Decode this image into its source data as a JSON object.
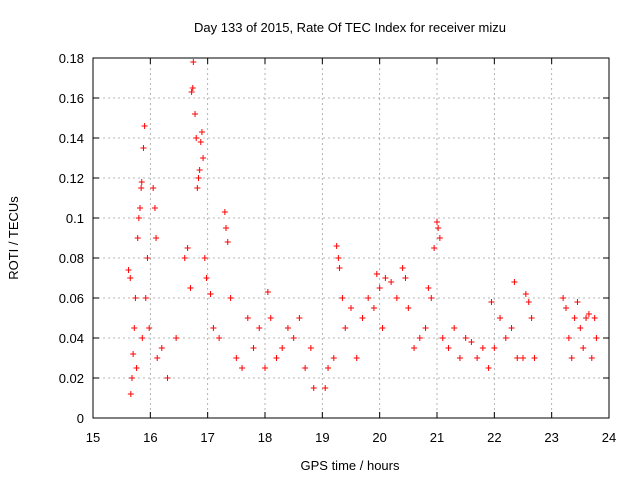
{
  "chart_data": {
    "type": "scatter",
    "title": "Day 133 of 2015, Rate Of TEC Index for receiver mizu",
    "xlabel": "GPS time / hours",
    "ylabel": "ROTI / TECUs",
    "xlim": [
      15,
      24
    ],
    "ylim": [
      0,
      0.18
    ],
    "xticks": [
      "15",
      "16",
      "17",
      "18",
      "19",
      "20",
      "21",
      "22",
      "23",
      "24"
    ],
    "yticks": [
      "0",
      "0.02",
      "0.04",
      "0.06",
      "0.08",
      "0.1",
      "0.12",
      "0.14",
      "0.16",
      "0.18"
    ],
    "grid": true,
    "marker": "+",
    "marker_color": "#ff0000",
    "series": [
      {
        "values": [
          [
            15.62,
            0.074
          ],
          [
            15.65,
            0.07
          ],
          [
            15.66,
            0.012
          ],
          [
            15.68,
            0.02
          ],
          [
            15.7,
            0.032
          ],
          [
            15.72,
            0.045
          ],
          [
            15.74,
            0.06
          ],
          [
            15.76,
            0.025
          ],
          [
            15.78,
            0.09
          ],
          [
            15.8,
            0.1
          ],
          [
            15.82,
            0.105
          ],
          [
            15.84,
            0.115
          ],
          [
            15.85,
            0.118
          ],
          [
            15.86,
            0.04
          ],
          [
            15.88,
            0.135
          ],
          [
            15.9,
            0.146
          ],
          [
            15.92,
            0.06
          ],
          [
            15.95,
            0.08
          ],
          [
            15.98,
            0.045
          ],
          [
            16.05,
            0.115
          ],
          [
            16.08,
            0.105
          ],
          [
            16.1,
            0.09
          ],
          [
            16.12,
            0.03
          ],
          [
            16.2,
            0.035
          ],
          [
            16.3,
            0.02
          ],
          [
            16.45,
            0.04
          ],
          [
            16.6,
            0.08
          ],
          [
            16.65,
            0.085
          ],
          [
            16.7,
            0.065
          ],
          [
            16.72,
            0.163
          ],
          [
            16.74,
            0.165
          ],
          [
            16.75,
            0.178
          ],
          [
            16.78,
            0.152
          ],
          [
            16.8,
            0.14
          ],
          [
            16.82,
            0.115
          ],
          [
            16.84,
            0.12
          ],
          [
            16.86,
            0.124
          ],
          [
            16.88,
            0.138
          ],
          [
            16.9,
            0.143
          ],
          [
            16.92,
            0.13
          ],
          [
            16.95,
            0.08
          ],
          [
            16.98,
            0.07
          ],
          [
            17.05,
            0.062
          ],
          [
            17.1,
            0.045
          ],
          [
            17.2,
            0.04
          ],
          [
            17.3,
            0.103
          ],
          [
            17.32,
            0.095
          ],
          [
            17.35,
            0.088
          ],
          [
            17.4,
            0.06
          ],
          [
            17.5,
            0.03
          ],
          [
            17.6,
            0.025
          ],
          [
            17.7,
            0.05
          ],
          [
            17.8,
            0.035
          ],
          [
            17.9,
            0.045
          ],
          [
            18.0,
            0.025
          ],
          [
            18.05,
            0.063
          ],
          [
            18.1,
            0.05
          ],
          [
            18.2,
            0.03
          ],
          [
            18.3,
            0.035
          ],
          [
            18.4,
            0.045
          ],
          [
            18.5,
            0.04
          ],
          [
            18.6,
            0.05
          ],
          [
            18.7,
            0.025
          ],
          [
            18.8,
            0.035
          ],
          [
            18.85,
            0.015
          ],
          [
            19.05,
            0.015
          ],
          [
            19.1,
            0.025
          ],
          [
            19.2,
            0.03
          ],
          [
            19.25,
            0.086
          ],
          [
            19.28,
            0.08
          ],
          [
            19.3,
            0.075
          ],
          [
            19.35,
            0.06
          ],
          [
            19.4,
            0.045
          ],
          [
            19.5,
            0.055
          ],
          [
            19.6,
            0.03
          ],
          [
            19.7,
            0.05
          ],
          [
            19.8,
            0.06
          ],
          [
            19.9,
            0.055
          ],
          [
            19.95,
            0.072
          ],
          [
            20.0,
            0.065
          ],
          [
            20.05,
            0.045
          ],
          [
            20.1,
            0.07
          ],
          [
            20.2,
            0.068
          ],
          [
            20.3,
            0.06
          ],
          [
            20.4,
            0.075
          ],
          [
            20.45,
            0.07
          ],
          [
            20.5,
            0.055
          ],
          [
            20.6,
            0.035
          ],
          [
            20.7,
            0.04
          ],
          [
            20.8,
            0.045
          ],
          [
            20.85,
            0.065
          ],
          [
            20.9,
            0.06
          ],
          [
            20.95,
            0.085
          ],
          [
            21.0,
            0.098
          ],
          [
            21.02,
            0.095
          ],
          [
            21.05,
            0.09
          ],
          [
            21.1,
            0.04
          ],
          [
            21.2,
            0.035
          ],
          [
            21.3,
            0.045
          ],
          [
            21.4,
            0.03
          ],
          [
            21.5,
            0.04
          ],
          [
            21.6,
            0.038
          ],
          [
            21.7,
            0.03
          ],
          [
            21.8,
            0.035
          ],
          [
            21.9,
            0.025
          ],
          [
            21.95,
            0.058
          ],
          [
            22.0,
            0.035
          ],
          [
            22.1,
            0.05
          ],
          [
            22.2,
            0.04
          ],
          [
            22.3,
            0.045
          ],
          [
            22.35,
            0.068
          ],
          [
            22.4,
            0.03
          ],
          [
            22.5,
            0.03
          ],
          [
            22.55,
            0.062
          ],
          [
            22.6,
            0.058
          ],
          [
            22.65,
            0.05
          ],
          [
            22.7,
            0.03
          ],
          [
            23.2,
            0.06
          ],
          [
            23.25,
            0.055
          ],
          [
            23.3,
            0.04
          ],
          [
            23.35,
            0.03
          ],
          [
            23.4,
            0.05
          ],
          [
            23.45,
            0.058
          ],
          [
            23.5,
            0.045
          ],
          [
            23.55,
            0.035
          ],
          [
            23.6,
            0.05
          ],
          [
            23.65,
            0.052
          ],
          [
            23.7,
            0.03
          ],
          [
            23.75,
            0.05
          ],
          [
            23.78,
            0.04
          ]
        ]
      }
    ]
  }
}
